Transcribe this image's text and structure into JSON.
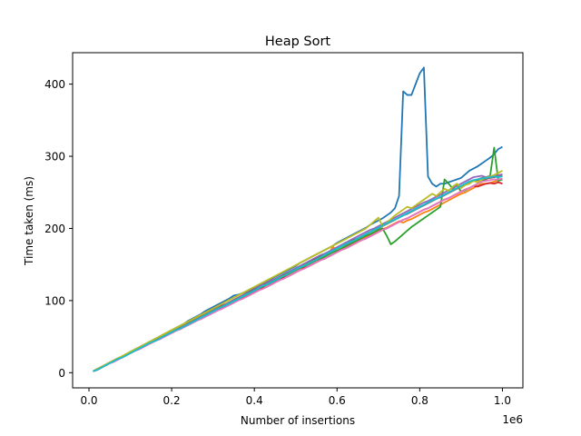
{
  "chart_data": {
    "type": "line",
    "title": "Heap Sort",
    "xlabel": "Number of insertions",
    "ylabel": "Time taken (ms)",
    "x_offset_label": "1e6",
    "xlim": [
      -0.0395,
      1.0495
    ],
    "ylim": [
      -21.0,
      443.6
    ],
    "xticks": [
      0.0,
      0.2,
      0.4,
      0.6,
      0.8,
      1.0
    ],
    "xtick_labels": [
      "0.0",
      "0.2",
      "0.4",
      "0.6",
      "0.8",
      "1.0"
    ],
    "yticks": [
      0,
      100,
      200,
      300,
      400
    ],
    "ytick_labels": [
      "0",
      "100",
      "200",
      "300",
      "400"
    ],
    "grid": false,
    "legend": "none",
    "x": [
      0.01,
      0.02,
      0.03,
      0.04,
      0.05,
      0.06,
      0.07,
      0.08,
      0.09,
      0.1,
      0.11,
      0.12,
      0.13,
      0.14,
      0.15,
      0.16,
      0.17,
      0.18,
      0.19,
      0.2,
      0.21,
      0.22,
      0.23,
      0.24,
      0.25,
      0.26,
      0.27,
      0.28,
      0.29,
      0.3,
      0.31,
      0.32,
      0.33,
      0.34,
      0.35,
      0.36,
      0.37,
      0.38,
      0.39,
      0.4,
      0.41,
      0.42,
      0.43,
      0.44,
      0.45,
      0.46,
      0.47,
      0.48,
      0.49,
      0.5,
      0.51,
      0.52,
      0.53,
      0.54,
      0.55,
      0.56,
      0.57,
      0.58,
      0.59,
      0.6,
      0.61,
      0.62,
      0.63,
      0.64,
      0.65,
      0.66,
      0.67,
      0.68,
      0.69,
      0.7,
      0.71,
      0.72,
      0.73,
      0.74,
      0.75,
      0.76,
      0.77,
      0.78,
      0.79,
      0.8,
      0.81,
      0.82,
      0.83,
      0.84,
      0.85,
      0.86,
      0.87,
      0.88,
      0.89,
      0.9,
      0.91,
      0.92,
      0.93,
      0.94,
      0.95,
      0.96,
      0.97,
      0.98,
      0.99,
      1.0
    ],
    "series": [
      {
        "color": "#1f77b4",
        "values": [
          2,
          5,
          8,
          11,
          14,
          17,
          20,
          22,
          25,
          29,
          32,
          35,
          38,
          41,
          44,
          47,
          50,
          53,
          56,
          59,
          62,
          65,
          68,
          72,
          75,
          78,
          81,
          85,
          88,
          91,
          94,
          97,
          100,
          103,
          107,
          108,
          110,
          112,
          115,
          118,
          121,
          124,
          127,
          130,
          133,
          136,
          139,
          142,
          145,
          148,
          152,
          155,
          158,
          161,
          164,
          167,
          170,
          173,
          176,
          180,
          183,
          186,
          189,
          192,
          195,
          198,
          201,
          205,
          208,
          211,
          214,
          218,
          222,
          228,
          245,
          390,
          385,
          385,
          400,
          415,
          423,
          272,
          262,
          258,
          262,
          262,
          264,
          266,
          268,
          270,
          275,
          280,
          283,
          286,
          290,
          294,
          298,
          303,
          310,
          313
        ]
      },
      {
        "color": "#ff7f0e",
        "values": [
          2,
          4,
          7,
          10,
          13,
          16,
          19,
          21,
          24,
          27,
          30,
          33,
          36,
          39,
          42,
          44,
          47,
          50,
          53,
          56,
          59,
          61,
          64,
          67,
          70,
          73,
          76,
          79,
          82,
          85,
          88,
          91,
          93,
          96,
          99,
          101,
          104,
          107,
          110,
          113,
          116,
          119,
          122,
          124,
          127,
          130,
          133,
          136,
          139,
          142,
          145,
          147,
          150,
          153,
          156,
          158,
          161,
          164,
          175,
          168,
          170,
          173,
          176,
          179,
          182,
          185,
          188,
          190,
          193,
          196,
          199,
          201,
          204,
          207,
          210,
          208,
          211,
          213,
          216,
          219,
          222,
          224,
          227,
          230,
          233,
          236,
          239,
          242,
          245,
          248,
          250,
          253,
          256,
          259,
          262,
          262,
          263,
          265,
          267,
          268
        ]
      },
      {
        "color": "#2ca02c",
        "values": [
          2,
          4,
          7,
          10,
          13,
          16,
          19,
          21,
          24,
          27,
          30,
          33,
          36,
          39,
          42,
          44,
          47,
          50,
          53,
          56,
          59,
          61,
          64,
          67,
          70,
          73,
          76,
          79,
          82,
          85,
          88,
          91,
          93,
          96,
          99,
          101,
          104,
          107,
          110,
          113,
          116,
          119,
          122,
          124,
          127,
          130,
          133,
          136,
          139,
          142,
          145,
          147,
          150,
          153,
          156,
          158,
          161,
          164,
          167,
          169,
          172,
          175,
          178,
          181,
          184,
          187,
          190,
          192,
          195,
          198,
          200,
          190,
          178,
          182,
          187,
          192,
          197,
          202,
          206,
          210,
          214,
          218,
          222,
          226,
          230,
          268,
          262,
          255,
          260,
          251,
          253,
          256,
          259,
          262,
          265,
          268,
          272,
          312,
          266,
          268
        ]
      },
      {
        "color": "#d62728",
        "values": [
          2,
          4,
          7,
          10,
          13,
          16,
          19,
          21,
          24,
          27,
          30,
          33,
          36,
          39,
          41,
          44,
          47,
          50,
          53,
          55,
          58,
          61,
          64,
          66,
          69,
          72,
          75,
          78,
          80,
          83,
          86,
          89,
          92,
          94,
          97,
          100,
          103,
          105,
          108,
          111,
          114,
          117,
          119,
          122,
          125,
          128,
          131,
          133,
          136,
          139,
          142,
          145,
          147,
          150,
          153,
          156,
          158,
          161,
          164,
          167,
          170,
          172,
          175,
          178,
          181,
          184,
          186,
          189,
          192,
          195,
          198,
          200,
          203,
          206,
          209,
          212,
          214,
          217,
          220,
          223,
          226,
          228,
          231,
          234,
          237,
          240,
          242,
          245,
          248,
          251,
          254,
          256,
          259,
          258,
          260,
          262,
          263,
          262,
          264,
          262
        ]
      },
      {
        "color": "#9467bd",
        "values": [
          2,
          5,
          8,
          11,
          14,
          17,
          20,
          22,
          25,
          28,
          31,
          34,
          37,
          40,
          43,
          46,
          49,
          52,
          55,
          58,
          60,
          63,
          66,
          69,
          72,
          75,
          78,
          81,
          84,
          87,
          90,
          93,
          95,
          98,
          101,
          104,
          107,
          110,
          113,
          116,
          119,
          122,
          125,
          128,
          130,
          133,
          136,
          139,
          142,
          145,
          148,
          151,
          154,
          157,
          160,
          163,
          165,
          168,
          171,
          174,
          177,
          180,
          183,
          186,
          189,
          192,
          195,
          198,
          200,
          203,
          206,
          209,
          212,
          215,
          218,
          221,
          224,
          227,
          230,
          233,
          236,
          238,
          241,
          244,
          247,
          250,
          253,
          256,
          259,
          262,
          265,
          268,
          271,
          272,
          273,
          271,
          270,
          272,
          274,
          275
        ]
      },
      {
        "color": "#8c564b",
        "values": [
          2,
          5,
          8,
          11,
          14,
          17,
          20,
          22,
          25,
          28,
          31,
          34,
          37,
          40,
          43,
          46,
          48,
          51,
          54,
          57,
          60,
          63,
          66,
          69,
          71,
          74,
          77,
          80,
          83,
          86,
          89,
          92,
          94,
          97,
          100,
          103,
          106,
          109,
          112,
          115,
          117,
          120,
          123,
          126,
          129,
          132,
          135,
          138,
          140,
          143,
          146,
          149,
          152,
          155,
          158,
          161,
          163,
          166,
          169,
          172,
          175,
          178,
          181,
          184,
          186,
          189,
          192,
          195,
          198,
          201,
          204,
          207,
          209,
          212,
          215,
          218,
          221,
          224,
          227,
          230,
          232,
          235,
          238,
          241,
          244,
          247,
          250,
          253,
          255,
          258,
          261,
          264,
          266,
          267,
          268,
          269,
          270,
          271,
          272,
          273
        ]
      },
      {
        "color": "#e377c2",
        "values": [
          2,
          4,
          7,
          10,
          13,
          15,
          18,
          21,
          24,
          27,
          30,
          32,
          35,
          38,
          41,
          44,
          46,
          49,
          52,
          55,
          58,
          60,
          63,
          66,
          69,
          72,
          74,
          77,
          80,
          83,
          86,
          88,
          91,
          94,
          97,
          100,
          102,
          105,
          108,
          111,
          114,
          116,
          119,
          122,
          125,
          128,
          130,
          133,
          136,
          139,
          142,
          144,
          147,
          150,
          153,
          156,
          158,
          161,
          164,
          167,
          170,
          172,
          175,
          178,
          181,
          184,
          186,
          189,
          192,
          195,
          198,
          200,
          203,
          206,
          209,
          212,
          214,
          217,
          220,
          223,
          226,
          228,
          231,
          234,
          237,
          240,
          242,
          245,
          248,
          251,
          254,
          256,
          259,
          262,
          265,
          266,
          267,
          268,
          268,
          269
        ]
      },
      {
        "color": "#7f7f7f",
        "values": [
          2,
          5,
          8,
          11,
          14,
          17,
          19,
          22,
          25,
          28,
          31,
          34,
          37,
          40,
          43,
          46,
          48,
          51,
          54,
          57,
          60,
          63,
          66,
          68,
          71,
          74,
          77,
          80,
          83,
          86,
          89,
          91,
          94,
          97,
          100,
          103,
          106,
          109,
          111,
          114,
          117,
          120,
          123,
          126,
          129,
          132,
          134,
          137,
          140,
          143,
          146,
          149,
          152,
          154,
          157,
          160,
          163,
          166,
          169,
          172,
          175,
          177,
          180,
          183,
          186,
          189,
          192,
          195,
          198,
          200,
          203,
          206,
          209,
          212,
          215,
          218,
          220,
          223,
          226,
          229,
          232,
          235,
          238,
          241,
          243,
          246,
          249,
          252,
          255,
          258,
          261,
          263,
          266,
          268,
          270,
          271,
          273,
          272,
          272,
          273
        ]
      },
      {
        "color": "#bcbd22",
        "values": [
          2,
          5,
          8,
          11,
          14,
          17,
          20,
          23,
          26,
          29,
          32,
          35,
          38,
          41,
          44,
          47,
          50,
          53,
          56,
          59,
          62,
          65,
          68,
          71,
          74,
          77,
          80,
          83,
          86,
          89,
          92,
          95,
          98,
          101,
          104,
          107,
          110,
          113,
          116,
          119,
          122,
          125,
          128,
          131,
          134,
          137,
          140,
          143,
          146,
          149,
          152,
          155,
          158,
          161,
          164,
          167,
          170,
          173,
          176,
          179,
          182,
          185,
          188,
          191,
          194,
          197,
          200,
          205,
          210,
          215,
          203,
          208,
          213,
          218,
          222,
          226,
          230,
          228,
          232,
          236,
          240,
          244,
          248,
          245,
          250,
          255,
          252,
          258,
          262,
          256,
          260,
          262,
          266,
          264,
          268,
          270,
          272,
          274,
          277,
          280
        ]
      },
      {
        "color": "#17becf",
        "values": [
          2,
          4,
          7,
          10,
          13,
          16,
          19,
          21,
          24,
          27,
          30,
          33,
          36,
          39,
          42,
          44,
          47,
          50,
          53,
          56,
          59,
          61,
          64,
          67,
          70,
          73,
          76,
          79,
          82,
          85,
          88,
          91,
          93,
          96,
          99,
          102,
          105,
          108,
          111,
          114,
          117,
          120,
          122,
          125,
          128,
          131,
          134,
          137,
          140,
          143,
          146,
          148,
          151,
          154,
          157,
          160,
          163,
          166,
          169,
          172,
          175,
          178,
          181,
          183,
          186,
          189,
          192,
          195,
          198,
          201,
          204,
          207,
          210,
          212,
          215,
          218,
          221,
          224,
          227,
          230,
          233,
          236,
          239,
          241,
          244,
          247,
          250,
          253,
          256,
          259,
          262,
          265,
          267,
          268,
          269,
          270,
          271,
          272,
          271,
          272
        ]
      }
    ]
  }
}
